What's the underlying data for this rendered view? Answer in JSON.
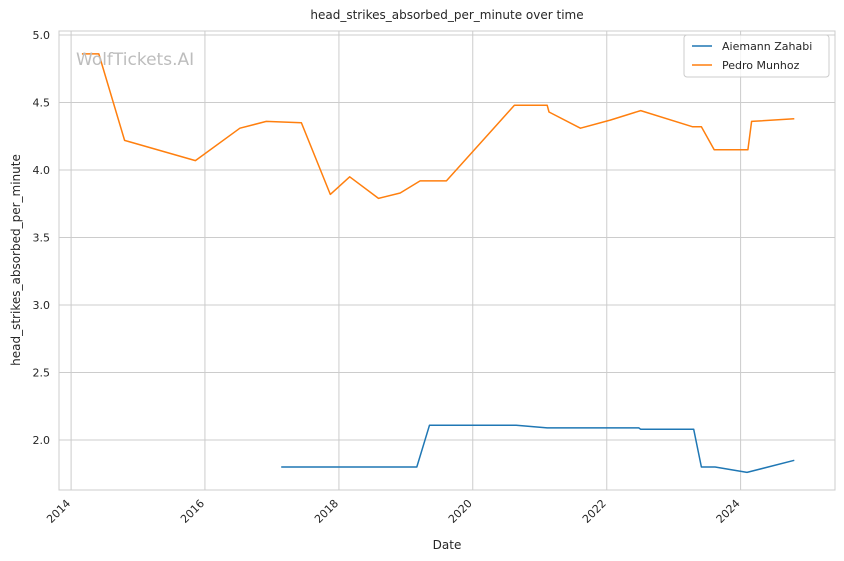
{
  "watermark": "WolfTickets.AI",
  "chart_data": {
    "type": "line",
    "title": "head_strikes_absorbed_per_minute over time",
    "xlabel": "Date",
    "ylabel": "head_strikes_absorbed_per_minute",
    "x_axis": "date",
    "xlim": [
      "2013-10-27",
      "2025-05-30"
    ],
    "ylim": [
      1.63,
      5.03
    ],
    "xticks": [
      "2014",
      "2016",
      "2018",
      "2020",
      "2022",
      "2024"
    ],
    "yticks": [
      "2.0",
      "2.5",
      "3.0",
      "3.5",
      "4.0",
      "4.5",
      "5.0"
    ],
    "grid": true,
    "legend_position": "top-right",
    "colors": {
      "grid": "#cccccc",
      "spine": "#cccccc",
      "background": "#ffffff"
    },
    "series": [
      {
        "name": "Aiemann Zahabi",
        "color": "#1f77b4",
        "x": [
          "2017-02-20",
          "2019-03-02",
          "2019-05-10",
          "2020-08-25",
          "2021-02-10",
          "2022-06-25",
          "2022-07-05",
          "2023-04-20",
          "2023-06-01",
          "2023-08-15",
          "2024-02-05",
          "2024-10-20"
        ],
        "y": [
          1.8,
          1.8,
          2.11,
          2.11,
          2.09,
          2.09,
          2.08,
          2.08,
          1.8,
          1.8,
          1.76,
          1.85
        ]
      },
      {
        "name": "Pedro Munhoz",
        "color": "#ff7f0e",
        "x": [
          "2014-03-01",
          "2014-06-01",
          "2014-10-20",
          "2015-11-10",
          "2016-07-10",
          "2016-12-01",
          "2017-06-10",
          "2017-11-15",
          "2018-03-01",
          "2018-08-05",
          "2018-12-01",
          "2019-03-20",
          "2019-08-10",
          "2020-08-15",
          "2021-02-10",
          "2021-02-20",
          "2021-08-10",
          "2022-01-20",
          "2022-07-05",
          "2023-04-15",
          "2023-06-01",
          "2023-08-10",
          "2024-02-10",
          "2024-03-01",
          "2024-10-20"
        ],
        "y": [
          4.86,
          4.86,
          4.22,
          4.07,
          4.31,
          4.36,
          4.35,
          3.82,
          3.95,
          3.79,
          3.83,
          3.92,
          3.92,
          4.48,
          4.48,
          4.43,
          4.31,
          4.37,
          4.44,
          4.32,
          4.32,
          4.15,
          4.15,
          4.36,
          4.38
        ]
      }
    ]
  }
}
